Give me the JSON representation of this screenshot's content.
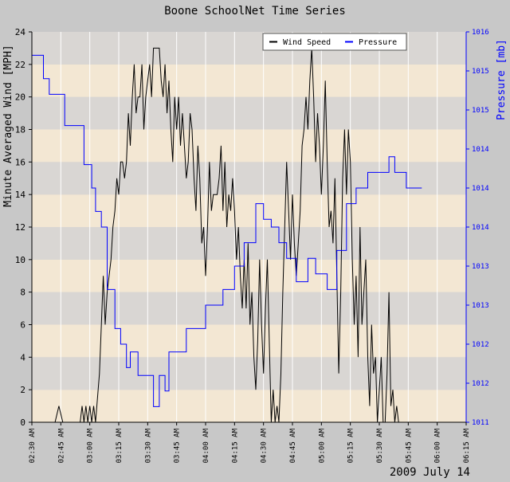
{
  "colors": {
    "background": "#c8c8c8",
    "band_light": "#f3e7d3",
    "band_dark": "#d9d6d3",
    "wind": "#000000",
    "pressure": "#0000ff",
    "grid": "#ffffff"
  },
  "chart_data": {
    "type": "line",
    "title": "Boone SchoolNet Time Series",
    "date_label": "2009 July 14",
    "ylabel_left": "Minute Averaged Wind [MPH]",
    "ylabel_right": "Pressure [mb]",
    "legend_position": "top-right",
    "left_axis": {
      "min": 0,
      "max": 24,
      "ticks": [
        0,
        2,
        4,
        6,
        8,
        10,
        12,
        14,
        16,
        18,
        20,
        22,
        24
      ]
    },
    "right_axis": {
      "min": 1011,
      "max": 1016,
      "tick_positions": [
        1011,
        1011.5,
        1012,
        1012.5,
        1013,
        1013.5,
        1014,
        1014.5,
        1015,
        1015.5,
        1016
      ],
      "tick_labels": [
        "1011",
        "1012",
        "1012",
        "1013",
        "1013",
        "1014",
        "1014",
        "1014",
        "1015",
        "1015",
        "1016"
      ]
    },
    "x_range": [
      "02:30",
      "06:15"
    ],
    "x_ticks": [
      "02:30 AM",
      "02:45 AM",
      "03:00 AM",
      "03:15 AM",
      "03:30 AM",
      "03:45 AM",
      "04:00 AM",
      "04:15 AM",
      "04:30 AM",
      "04:45 AM",
      "05:00 AM",
      "05:15 AM",
      "05:30 AM",
      "05:45 AM",
      "06:00 AM",
      "06:15 AM"
    ],
    "grid": true,
    "series": [
      {
        "name": "Wind Speed",
        "axis": "left",
        "color": "#000000",
        "points": [
          [
            "02:30",
            0
          ],
          [
            "02:42",
            0
          ],
          [
            "02:44",
            1
          ],
          [
            "02:46",
            0
          ],
          [
            "02:55",
            0
          ],
          [
            "02:56",
            1
          ],
          [
            "02:57",
            0
          ],
          [
            "02:58",
            1
          ],
          [
            "02:59",
            0
          ],
          [
            "03:00",
            1
          ],
          [
            "03:01",
            0
          ],
          [
            "03:02",
            1
          ],
          [
            "03:03",
            0
          ],
          [
            "03:05",
            3
          ],
          [
            "03:06",
            6
          ],
          [
            "03:07",
            9
          ],
          [
            "03:08",
            6
          ],
          [
            "03:09",
            8
          ],
          [
            "03:10",
            9
          ],
          [
            "03:11",
            10
          ],
          [
            "03:12",
            12
          ],
          [
            "03:13",
            13
          ],
          [
            "03:14",
            15
          ],
          [
            "03:15",
            14
          ],
          [
            "03:16",
            16
          ],
          [
            "03:17",
            16
          ],
          [
            "03:18",
            15
          ],
          [
            "03:19",
            16
          ],
          [
            "03:20",
            19
          ],
          [
            "03:21",
            17
          ],
          [
            "03:22",
            20
          ],
          [
            "03:23",
            22
          ],
          [
            "03:24",
            19
          ],
          [
            "03:25",
            20
          ],
          [
            "03:26",
            20
          ],
          [
            "03:27",
            22
          ],
          [
            "03:28",
            18
          ],
          [
            "03:29",
            20
          ],
          [
            "03:30",
            21
          ],
          [
            "03:31",
            22
          ],
          [
            "03:32",
            20
          ],
          [
            "03:33",
            23
          ],
          [
            "03:34",
            23
          ],
          [
            "03:35",
            23
          ],
          [
            "03:36",
            23
          ],
          [
            "03:37",
            21
          ],
          [
            "03:38",
            20
          ],
          [
            "03:39",
            22
          ],
          [
            "03:40",
            19
          ],
          [
            "03:41",
            21
          ],
          [
            "03:42",
            18
          ],
          [
            "03:43",
            16
          ],
          [
            "03:44",
            20
          ],
          [
            "03:45",
            18
          ],
          [
            "03:46",
            20
          ],
          [
            "03:47",
            17
          ],
          [
            "03:48",
            19
          ],
          [
            "03:49",
            17
          ],
          [
            "03:50",
            15
          ],
          [
            "03:51",
            16
          ],
          [
            "03:52",
            19
          ],
          [
            "03:53",
            18
          ],
          [
            "03:54",
            15
          ],
          [
            "03:55",
            13
          ],
          [
            "03:56",
            17
          ],
          [
            "03:57",
            15
          ],
          [
            "03:58",
            11
          ],
          [
            "03:59",
            12
          ],
          [
            "04:00",
            9
          ],
          [
            "04:01",
            12
          ],
          [
            "04:02",
            16
          ],
          [
            "04:03",
            13
          ],
          [
            "04:04",
            14
          ],
          [
            "04:05",
            14
          ],
          [
            "04:06",
            14
          ],
          [
            "04:07",
            15
          ],
          [
            "04:08",
            17
          ],
          [
            "04:09",
            13
          ],
          [
            "04:10",
            16
          ],
          [
            "04:11",
            12
          ],
          [
            "04:12",
            14
          ],
          [
            "04:13",
            13
          ],
          [
            "04:14",
            15
          ],
          [
            "04:15",
            13
          ],
          [
            "04:16",
            10
          ],
          [
            "04:17",
            12
          ],
          [
            "04:18",
            9
          ],
          [
            "04:19",
            7
          ],
          [
            "04:20",
            10
          ],
          [
            "04:21",
            7
          ],
          [
            "04:22",
            11
          ],
          [
            "04:23",
            6
          ],
          [
            "04:24",
            8
          ],
          [
            "04:25",
            4
          ],
          [
            "04:26",
            2
          ],
          [
            "04:27",
            5
          ],
          [
            "04:28",
            10
          ],
          [
            "04:29",
            6
          ],
          [
            "04:30",
            3
          ],
          [
            "04:31",
            7
          ],
          [
            "04:32",
            10
          ],
          [
            "04:33",
            5
          ],
          [
            "04:34",
            0
          ],
          [
            "04:35",
            2
          ],
          [
            "04:36",
            0
          ],
          [
            "04:37",
            1
          ],
          [
            "04:38",
            0
          ],
          [
            "04:39",
            3
          ],
          [
            "04:40",
            8
          ],
          [
            "04:41",
            12
          ],
          [
            "04:42",
            16
          ],
          [
            "04:43",
            13
          ],
          [
            "04:44",
            10
          ],
          [
            "04:45",
            14
          ],
          [
            "04:46",
            11
          ],
          [
            "04:47",
            9
          ],
          [
            "04:48",
            11
          ],
          [
            "04:49",
            13
          ],
          [
            "04:50",
            17
          ],
          [
            "04:51",
            18
          ],
          [
            "04:52",
            20
          ],
          [
            "04:53",
            18
          ],
          [
            "04:54",
            21
          ],
          [
            "04:55",
            23
          ],
          [
            "04:56",
            20
          ],
          [
            "04:57",
            16
          ],
          [
            "04:58",
            19
          ],
          [
            "04:59",
            17
          ],
          [
            "05:00",
            14
          ],
          [
            "05:01",
            17
          ],
          [
            "05:02",
            21
          ],
          [
            "05:03",
            16
          ],
          [
            "05:04",
            12
          ],
          [
            "05:05",
            13
          ],
          [
            "05:06",
            11
          ],
          [
            "05:07",
            15
          ],
          [
            "05:08",
            9
          ],
          [
            "05:09",
            3
          ],
          [
            "05:10",
            8
          ],
          [
            "05:11",
            15
          ],
          [
            "05:12",
            18
          ],
          [
            "05:13",
            14
          ],
          [
            "05:14",
            18
          ],
          [
            "05:15",
            16
          ],
          [
            "05:16",
            10
          ],
          [
            "05:17",
            6
          ],
          [
            "05:18",
            9
          ],
          [
            "05:19",
            4
          ],
          [
            "05:20",
            12
          ],
          [
            "05:21",
            6
          ],
          [
            "05:22",
            8
          ],
          [
            "05:23",
            10
          ],
          [
            "05:24",
            4
          ],
          [
            "05:25",
            1
          ],
          [
            "05:26",
            6
          ],
          [
            "05:27",
            3
          ],
          [
            "05:28",
            4
          ],
          [
            "05:29",
            0
          ],
          [
            "05:30",
            2
          ],
          [
            "05:31",
            4
          ],
          [
            "05:32",
            0
          ],
          [
            "05:33",
            0
          ],
          [
            "05:34",
            3
          ],
          [
            "05:35",
            8
          ],
          [
            "05:36",
            1
          ],
          [
            "05:37",
            2
          ],
          [
            "05:38",
            0
          ],
          [
            "05:39",
            1
          ],
          [
            "05:40",
            0
          ],
          [
            "05:45",
            0
          ]
        ]
      },
      {
        "name": "Pressure",
        "axis": "right",
        "color": "#0000ff",
        "points": [
          [
            "02:30",
            1015.7
          ],
          [
            "02:36",
            1015.7
          ],
          [
            "02:36",
            1015.4
          ],
          [
            "02:39",
            1015.4
          ],
          [
            "02:39",
            1015.2
          ],
          [
            "02:47",
            1015.2
          ],
          [
            "02:47",
            1014.8
          ],
          [
            "02:57",
            1014.8
          ],
          [
            "02:57",
            1014.3
          ],
          [
            "03:01",
            1014.3
          ],
          [
            "03:01",
            1014.0
          ],
          [
            "03:03",
            1014.0
          ],
          [
            "03:03",
            1013.7
          ],
          [
            "03:06",
            1013.7
          ],
          [
            "03:06",
            1013.5
          ],
          [
            "03:09",
            1013.5
          ],
          [
            "03:09",
            1012.7
          ],
          [
            "03:13",
            1012.7
          ],
          [
            "03:13",
            1012.2
          ],
          [
            "03:16",
            1012.2
          ],
          [
            "03:16",
            1012.0
          ],
          [
            "03:19",
            1012.0
          ],
          [
            "03:19",
            1011.7
          ],
          [
            "03:21",
            1011.7
          ],
          [
            "03:21",
            1011.9
          ],
          [
            "03:25",
            1011.9
          ],
          [
            "03:25",
            1011.6
          ],
          [
            "03:33",
            1011.6
          ],
          [
            "03:33",
            1011.2
          ],
          [
            "03:36",
            1011.2
          ],
          [
            "03:36",
            1011.6
          ],
          [
            "03:39",
            1011.6
          ],
          [
            "03:39",
            1011.4
          ],
          [
            "03:41",
            1011.4
          ],
          [
            "03:41",
            1011.9
          ],
          [
            "03:50",
            1011.9
          ],
          [
            "03:50",
            1012.2
          ],
          [
            "04:00",
            1012.2
          ],
          [
            "04:00",
            1012.5
          ],
          [
            "04:09",
            1012.5
          ],
          [
            "04:09",
            1012.7
          ],
          [
            "04:15",
            1012.7
          ],
          [
            "04:15",
            1013.0
          ],
          [
            "04:20",
            1013.0
          ],
          [
            "04:20",
            1013.3
          ],
          [
            "04:26",
            1013.3
          ],
          [
            "04:26",
            1013.8
          ],
          [
            "04:30",
            1013.8
          ],
          [
            "04:30",
            1013.6
          ],
          [
            "04:34",
            1013.6
          ],
          [
            "04:34",
            1013.5
          ],
          [
            "04:38",
            1013.5
          ],
          [
            "04:38",
            1013.3
          ],
          [
            "04:42",
            1013.3
          ],
          [
            "04:42",
            1013.1
          ],
          [
            "04:47",
            1013.1
          ],
          [
            "04:47",
            1012.8
          ],
          [
            "04:53",
            1012.8
          ],
          [
            "04:53",
            1013.1
          ],
          [
            "04:57",
            1013.1
          ],
          [
            "04:57",
            1012.9
          ],
          [
            "05:03",
            1012.9
          ],
          [
            "05:03",
            1012.7
          ],
          [
            "05:08",
            1012.7
          ],
          [
            "05:08",
            1013.2
          ],
          [
            "05:13",
            1013.2
          ],
          [
            "05:13",
            1013.8
          ],
          [
            "05:18",
            1013.8
          ],
          [
            "05:18",
            1014.0
          ],
          [
            "05:24",
            1014.0
          ],
          [
            "05:24",
            1014.2
          ],
          [
            "05:35",
            1014.2
          ],
          [
            "05:35",
            1014.4
          ],
          [
            "05:38",
            1014.4
          ],
          [
            "05:38",
            1014.2
          ],
          [
            "05:44",
            1014.2
          ],
          [
            "05:44",
            1014.0
          ],
          [
            "05:52",
            1014.0
          ]
        ]
      }
    ]
  }
}
